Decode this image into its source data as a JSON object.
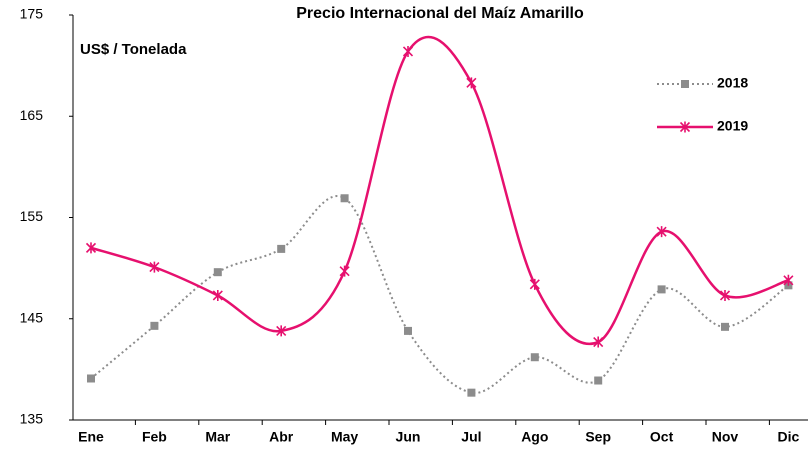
{
  "chart_data": {
    "type": "line",
    "title": "Precio Internacional del Maíz Amarillo",
    "annotation": "US$ / Tonelada",
    "categories": [
      "Ene",
      "Feb",
      "Mar",
      "Abr",
      "May",
      "Jun",
      "Jul",
      "Ago",
      "Sep",
      "Oct",
      "Nov",
      "Dic"
    ],
    "series": [
      {
        "name": "2018",
        "color": "#8c8c8c",
        "values": [
          139.1,
          144.3,
          149.6,
          151.9,
          156.9,
          143.8,
          137.7,
          141.2,
          138.9,
          147.9,
          144.2,
          148.3
        ]
      },
      {
        "name": "2019",
        "color": "#e6106e",
        "values": [
          152.0,
          150.1,
          147.3,
          143.8,
          149.7,
          171.4,
          168.3,
          148.4,
          142.7,
          153.6,
          147.3,
          148.8
        ]
      }
    ],
    "ylim": [
      135,
      175
    ],
    "yticks": [
      135,
      145,
      155,
      165,
      175
    ],
    "grid": false,
    "legend": "top-right"
  }
}
